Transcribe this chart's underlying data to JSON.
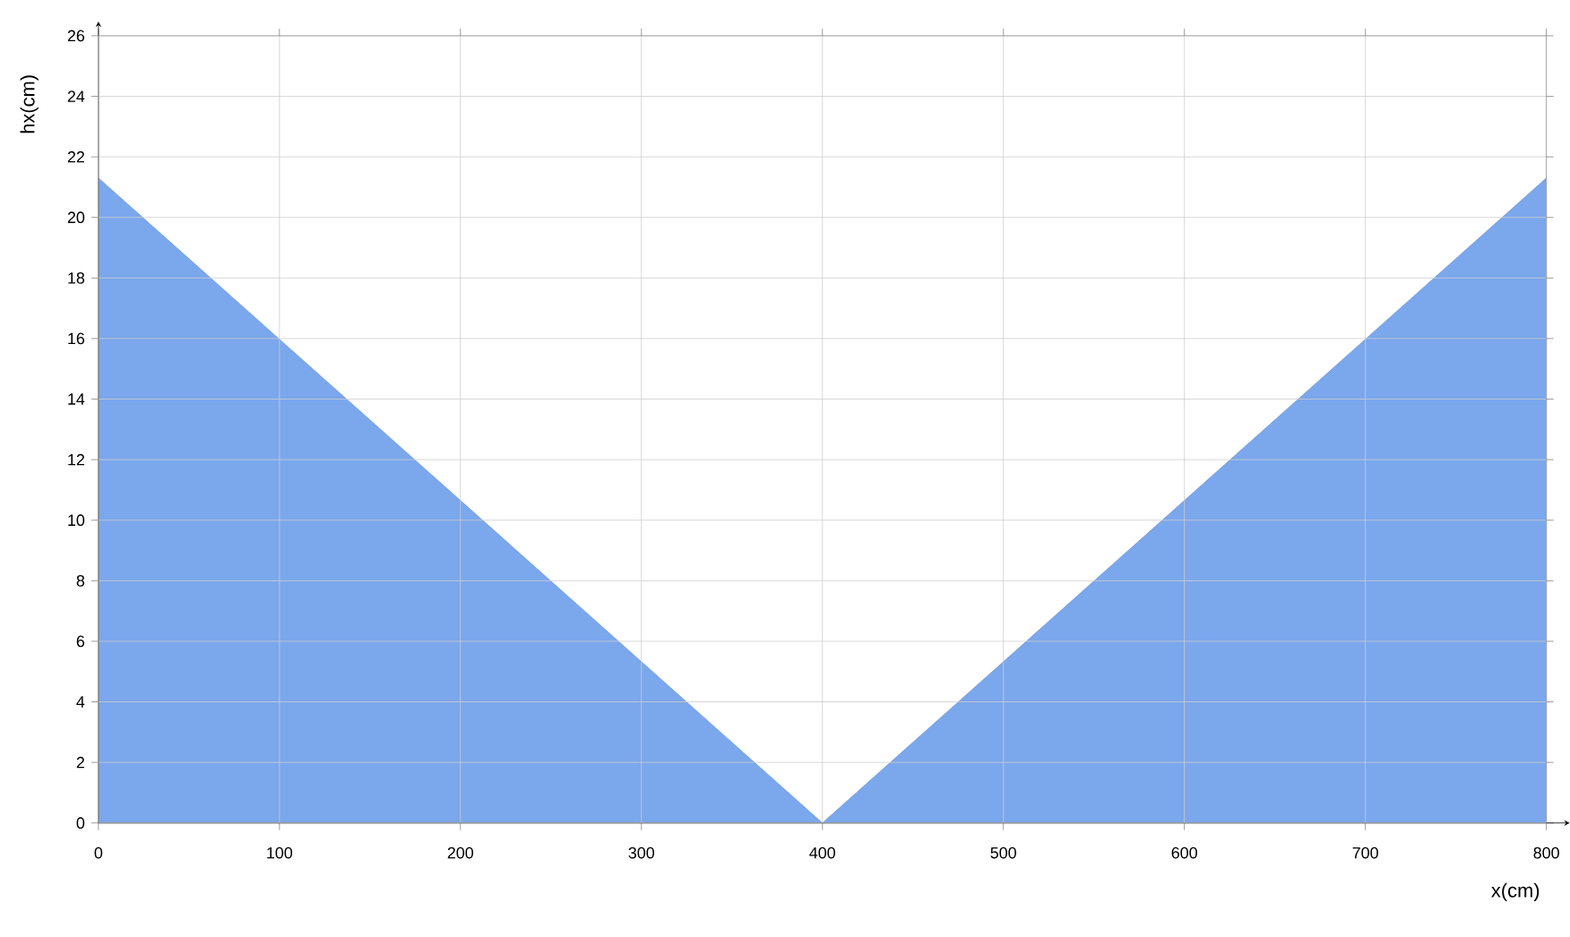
{
  "chart_data": {
    "type": "area",
    "xlabel": "x(cm)",
    "ylabel": "hx(cm)",
    "x": [
      0,
      400,
      800
    ],
    "series": [
      {
        "color": "#7ba7ec",
        "values": [
          21.3,
          0,
          21.3
        ]
      }
    ],
    "xlim": [
      0,
      800
    ],
    "xticks": [
      0,
      100,
      200,
      300,
      400,
      500,
      600,
      700,
      800
    ],
    "ylim": [
      0,
      26
    ],
    "yticks": [
      0,
      2,
      4,
      6,
      8,
      10,
      12,
      14,
      16,
      18,
      20,
      22,
      24,
      26
    ],
    "grid": true
  }
}
